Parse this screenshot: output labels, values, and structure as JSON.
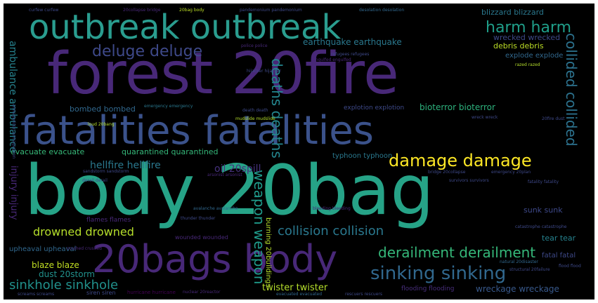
{
  "wordcloud": {
    "words": [
      {
        "text": "forest 20fire",
        "color": "#482878"
      },
      {
        "text": "outbreak outbreak",
        "color": "#2a9d8f"
      },
      {
        "text": "fatalities fatalities",
        "color": "#3b528b"
      },
      {
        "text": "body 20bag",
        "color": "#26a387"
      },
      {
        "text": "20bags body",
        "color": "#482878"
      },
      {
        "text": "damage damage",
        "color": "#fde725"
      },
      {
        "text": "deluge deluge",
        "color": "#3e4989"
      },
      {
        "text": "harm harm",
        "color": "#1f9e89"
      },
      {
        "text": "collided collided",
        "color": "#2c728e"
      },
      {
        "text": "deaths deaths",
        "color": "#24868e"
      },
      {
        "text": "sinking sinking",
        "color": "#31688e"
      },
      {
        "text": "derailment derailment",
        "color": "#35b779"
      },
      {
        "text": "collision collision",
        "color": "#2a788e"
      },
      {
        "text": "drowned drowned",
        "color": "#b5de2b"
      },
      {
        "text": "sinkhole sinkhole",
        "color": "#21918c"
      },
      {
        "text": "weapon weapon",
        "color": "#1f9a8a"
      },
      {
        "text": "twister twister",
        "color": "#b5de2b"
      },
      {
        "text": "wreckage wreckage",
        "color": "#38598c"
      },
      {
        "text": "blizzard blizzard",
        "color": "#2a788e"
      },
      {
        "text": "wrecked wrecked",
        "color": "#3e4989"
      },
      {
        "text": "debris debris",
        "color": "#bddf26"
      },
      {
        "text": "earthquake earthquake",
        "color": "#2a788e"
      },
      {
        "text": "bioterror bioterror",
        "color": "#2db27d"
      },
      {
        "text": "hellfire hellfire",
        "color": "#2a788e"
      },
      {
        "text": "oil 20spill",
        "color": "#46327e"
      },
      {
        "text": "bombed bombed",
        "color": "#31688e"
      },
      {
        "text": "evacuate evacuate",
        "color": "#37b878"
      },
      {
        "text": "quarantined quarantined",
        "color": "#35b779"
      },
      {
        "text": "injury injury",
        "color": "#482878"
      },
      {
        "text": "ambulance ambulance",
        "color": "#26828e"
      },
      {
        "text": "blaze blaze",
        "color": "#c2df23"
      },
      {
        "text": "dust 20storm",
        "color": "#21918c"
      },
      {
        "text": "explode explode",
        "color": "#31688e"
      },
      {
        "text": "typhoon typhoon",
        "color": "#2a788e"
      },
      {
        "text": "sunk sunk",
        "color": "#3e4989"
      },
      {
        "text": "tear tear",
        "color": "#26828e"
      },
      {
        "text": "fatal fatal",
        "color": "#3e4989"
      },
      {
        "text": "upheaval upheaval",
        "color": "#31688e"
      },
      {
        "text": "flooding flooding",
        "color": "#472d7b"
      },
      {
        "text": "hurricane hurricane",
        "color": "#440154"
      },
      {
        "text": "explotion explotion",
        "color": "#3e4989"
      },
      {
        "text": "burning 20buildings",
        "color": "#b5de2b"
      },
      {
        "text": "wounded wounded",
        "color": "#482878"
      },
      {
        "text": "flames flames",
        "color": "#482878"
      },
      {
        "text": "pandemonium pandemonium",
        "color": "#3e4989"
      },
      {
        "text": "desolation desolation",
        "color": "#31688e"
      },
      {
        "text": "curfew curfew",
        "color": "#3e4989"
      },
      {
        "text": "20collapse bridge",
        "color": "#482878"
      },
      {
        "text": "20bag body",
        "color": "#bddf26"
      },
      {
        "text": "police police",
        "color": "#482878"
      },
      {
        "text": "flood flood",
        "color": "#3e4989"
      },
      {
        "text": "nuclear 20reactor",
        "color": "#482878"
      },
      {
        "text": "emergency 20plan",
        "color": "#3e4989"
      },
      {
        "text": "siren siren",
        "color": "#3e4989"
      },
      {
        "text": "screams screams",
        "color": "#3e4989"
      },
      {
        "text": "rescuers rescuers",
        "color": "#3e4989"
      },
      {
        "text": "evacuated evacuated",
        "color": "#31688e"
      },
      {
        "text": "structural 20failure",
        "color": "#3e4989"
      },
      {
        "text": "natural 20disaster",
        "color": "#31688e"
      },
      {
        "text": "catastrophe catastrophe",
        "color": "#3e4989"
      },
      {
        "text": "razed razed",
        "color": "#b5de2b"
      },
      {
        "text": "bleeding bleeding",
        "color": "#482878"
      },
      {
        "text": "thunder thunder",
        "color": "#3e4989"
      },
      {
        "text": "hijacker hijacker",
        "color": "#3e4989"
      },
      {
        "text": "engulfed engulfed",
        "color": "#482878"
      },
      {
        "text": "sandstorm sandstorm",
        "color": "#3e4989"
      },
      {
        "text": "refugees refugees",
        "color": "#3e4989"
      },
      {
        "text": "mudslide mudslide",
        "color": "#b5de2b"
      },
      {
        "text": "death death",
        "color": "#3e4989"
      },
      {
        "text": "wreck wreck",
        "color": "#3e4989"
      },
      {
        "text": "20fire dust",
        "color": "#3e4989"
      },
      {
        "text": "fatality fatality",
        "color": "#3e4989"
      },
      {
        "text": "survivors survivors",
        "color": "#3e4989"
      },
      {
        "text": "armageddon armageddon",
        "color": "#3e4989"
      },
      {
        "text": "avalanche avalanche",
        "color": "#31688e"
      },
      {
        "text": "crushed crushed",
        "color": "#482878"
      },
      {
        "text": "arsonist arsonist",
        "color": "#482878"
      },
      {
        "text": "derail derail",
        "color": "#3e4989"
      },
      {
        "text": "loud 20bang",
        "color": "#b5de2b"
      },
      {
        "text": "emergency emergency",
        "color": "#2a788e"
      },
      {
        "text": "bridge 20collapse",
        "color": "#3e4989"
      }
    ]
  }
}
